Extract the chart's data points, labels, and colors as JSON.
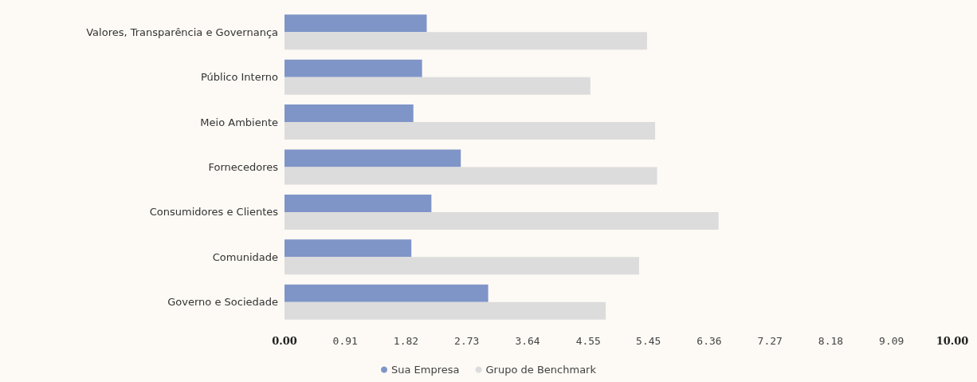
{
  "chart_data": {
    "type": "bar",
    "orientation": "horizontal",
    "categories": [
      "Valores, Transparência e Governança",
      "Público Interno",
      "Meio Ambiente",
      "Fornecedores",
      "Consumidores e Clientes",
      "Comunidade",
      "Governo e Sociedade"
    ],
    "series": [
      {
        "name": "Sua Empresa",
        "color": "#7f95c8",
        "values": [
          2.13,
          2.06,
          1.93,
          2.64,
          2.2,
          1.9,
          3.05
        ]
      },
      {
        "name": "Grupo de Benchmark",
        "color": "#dcdcdc",
        "values": [
          5.43,
          4.58,
          5.55,
          5.58,
          6.5,
          5.31,
          4.81
        ]
      }
    ],
    "xlim": [
      0,
      10
    ],
    "xticks": [
      {
        "value": 0,
        "label": "0.00"
      },
      0.91,
      1.82,
      2.73,
      3.64,
      4.55,
      5.45,
      6.36,
      7.27,
      8.18,
      9.09,
      {
        "value": 10,
        "label": "10.00"
      }
    ],
    "grid": false,
    "legend": "bottom"
  }
}
